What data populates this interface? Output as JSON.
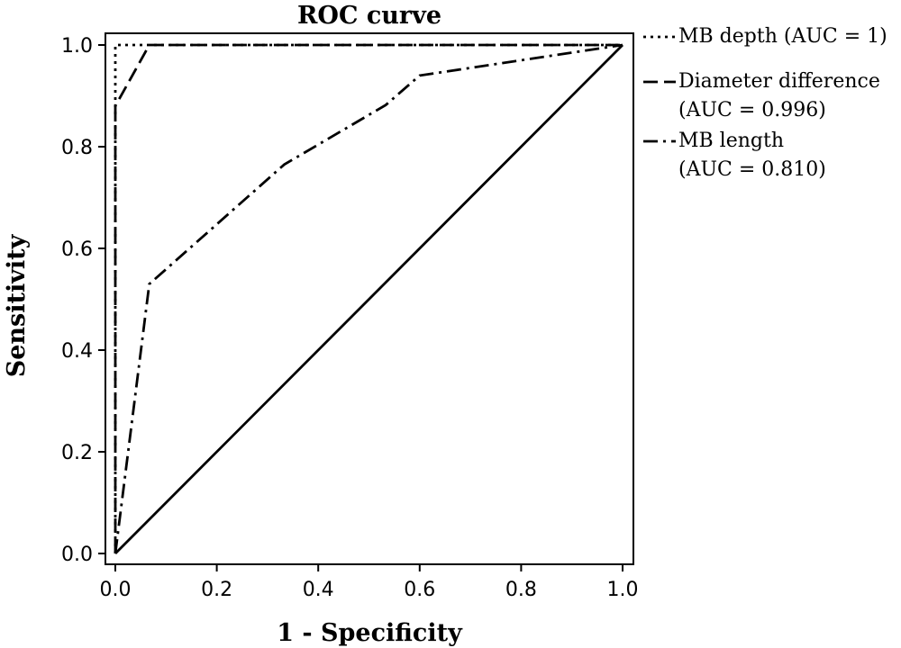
{
  "chart_data": {
    "type": "line",
    "title": "ROC curve",
    "xlabel": "1 - Specificity",
    "ylabel": "Sensitivity",
    "xlim": [
      0.0,
      1.0
    ],
    "ylim": [
      0.0,
      1.0
    ],
    "x_ticks": [
      "0.0",
      "0.2",
      "0.4",
      "0.6",
      "0.8",
      "1.0"
    ],
    "y_ticks": [
      "0.0",
      "0.2",
      "0.4",
      "0.6",
      "0.8",
      "1.0"
    ],
    "grid": false,
    "legend_position": "right",
    "series": [
      {
        "name": "MB depth (AUC = 1)",
        "legend_lines": [
          "MB depth (AUC = 1)"
        ],
        "style": "dotted",
        "points": [
          [
            0.0,
            0.0
          ],
          [
            0.0,
            1.0
          ],
          [
            1.0,
            1.0
          ]
        ]
      },
      {
        "name": "Diameter difference (AUC = 0.996)",
        "legend_lines": [
          "Diameter difference",
          "(AUC = 0.996)"
        ],
        "style": "dashed",
        "points": [
          [
            0.0,
            0.0
          ],
          [
            0.0,
            0.88
          ],
          [
            0.067,
            1.0
          ],
          [
            1.0,
            1.0
          ]
        ]
      },
      {
        "name": "MB length (AUC = 0.810)",
        "legend_lines": [
          "MB length",
          "(AUC = 0.810)"
        ],
        "style": "dashdot",
        "points": [
          [
            0.0,
            0.0
          ],
          [
            0.067,
            0.53
          ],
          [
            0.333,
            0.765
          ],
          [
            0.533,
            0.882
          ],
          [
            0.6,
            0.94
          ],
          [
            1.0,
            1.0
          ]
        ]
      },
      {
        "style": "solid",
        "points": [
          [
            0.0,
            0.0
          ],
          [
            1.0,
            1.0
          ]
        ]
      }
    ]
  }
}
